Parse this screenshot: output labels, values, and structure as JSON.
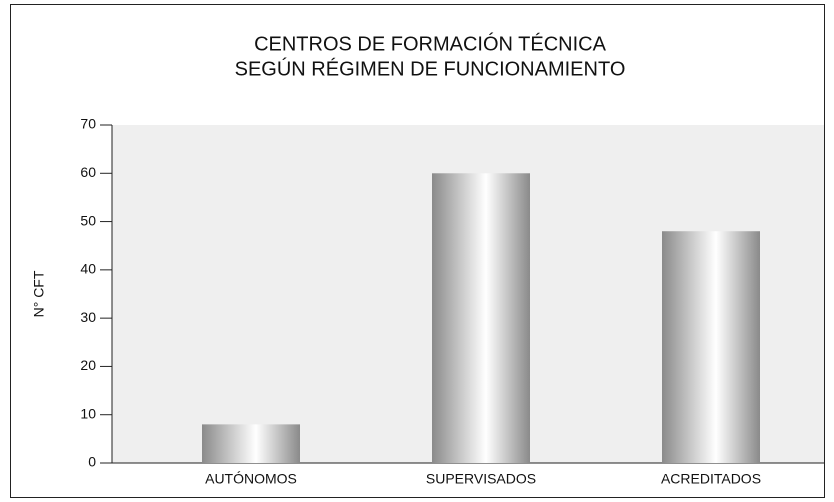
{
  "chart_data": {
    "type": "bar",
    "title": [
      "CENTROS DE FORMACIÓN TÉCNICA",
      "SEGÚN RÉGIMEN DE FUNCIONAMIENTO"
    ],
    "y_label": "N° CFT",
    "categories": [
      "AUTÓNOMOS",
      "SUPERVISADOS",
      "ACREDITADOS"
    ],
    "values": [
      8,
      60,
      48
    ],
    "color": "#8a8a8a",
    "ylim": [
      0,
      70
    ],
    "yticks": [
      0,
      10,
      20,
      30,
      40,
      50,
      60,
      70
    ]
  }
}
